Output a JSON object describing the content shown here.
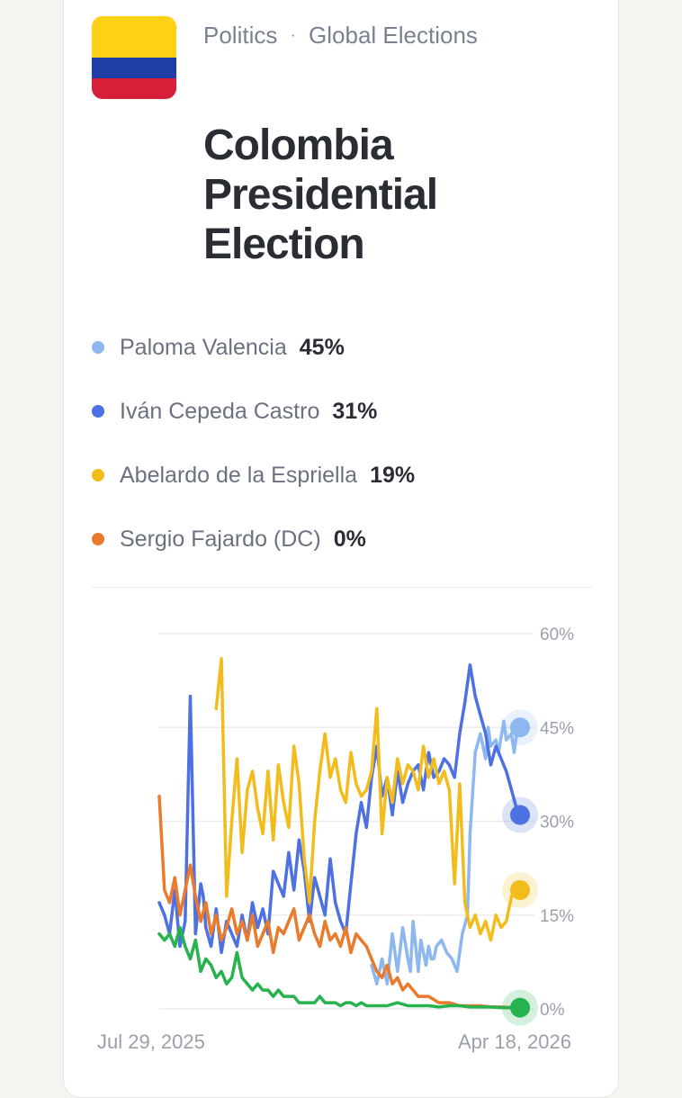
{
  "header": {
    "category": "Politics",
    "separator": "·",
    "subcategory": "Global Elections",
    "flag_icon": "colombia-flag-icon"
  },
  "title": "Colombia Presidential Election",
  "candidates": [
    {
      "name": "Paloma Valencia",
      "pct": "45%",
      "color": "#8db8ef"
    },
    {
      "name": "Iván Cepeda Castro",
      "pct": "31%",
      "color": "#4d71e3"
    },
    {
      "name": "Abelardo de la Espriella",
      "pct": "19%",
      "color": "#f2bd1c"
    },
    {
      "name": "Sergio Fajardo (DC)",
      "pct": "0%",
      "color": "#ea7b2c"
    }
  ],
  "chart_data": {
    "type": "line",
    "x_start": "Jul 29, 2025",
    "x_end": "Apr 18, 2026",
    "y_ticks": [
      "60%",
      "45%",
      "30%",
      "15%",
      "0%"
    ],
    "ylim": [
      0,
      60
    ],
    "series": [
      {
        "name": "Paloma Valencia",
        "color": "#8db8ef",
        "x": [
          0.82,
          0.84,
          0.86,
          0.88,
          0.9,
          0.92,
          0.94,
          0.96,
          0.97,
          0.98,
          0.99,
          1.0,
          1.01,
          1.02,
          1.03,
          1.04,
          1.05,
          1.06,
          1.07,
          1.09,
          1.11,
          1.13,
          1.15,
          1.17,
          1.19,
          1.2,
          1.22,
          1.24,
          1.26,
          1.27,
          1.28,
          1.3,
          1.31,
          1.33,
          1.34,
          1.36,
          1.37,
          1.38,
          1.4
        ],
        "values": [
          7,
          4,
          8,
          4,
          12,
          6,
          13,
          8,
          6,
          14,
          10,
          6,
          11,
          9,
          7,
          10,
          8,
          8,
          10,
          11,
          9,
          8,
          6,
          12,
          15,
          28,
          41,
          44,
          40,
          45,
          42,
          43,
          41,
          46,
          43,
          44,
          41,
          44,
          45
        ]
      },
      {
        "name": "Iván Cepeda Castro",
        "color": "#4d71e3",
        "x": [
          0,
          0.02,
          0.04,
          0.06,
          0.08,
          0.1,
          0.12,
          0.14,
          0.16,
          0.17,
          0.18,
          0.2,
          0.22,
          0.24,
          0.26,
          0.28,
          0.3,
          0.32,
          0.34,
          0.36,
          0.38,
          0.4,
          0.42,
          0.44,
          0.46,
          0.48,
          0.5,
          0.52,
          0.54,
          0.56,
          0.58,
          0.6,
          0.62,
          0.64,
          0.66,
          0.68,
          0.7,
          0.72,
          0.74,
          0.76,
          0.78,
          0.8,
          0.82,
          0.84,
          0.86,
          0.88,
          0.9,
          0.92,
          0.94,
          0.96,
          0.98,
          1.0,
          1.02,
          1.04,
          1.06,
          1.08,
          1.1,
          1.12,
          1.14,
          1.16,
          1.18,
          1.2,
          1.22,
          1.24,
          1.26,
          1.28,
          1.3,
          1.32,
          1.34,
          1.36,
          1.38,
          1.4
        ],
        "values": [
          17,
          15,
          12,
          19,
          10,
          14,
          50,
          12,
          20,
          18,
          13,
          10,
          16,
          9,
          14,
          12,
          10,
          15,
          11,
          17,
          13,
          16,
          12,
          22,
          20,
          18,
          25,
          19,
          27,
          22,
          14,
          21,
          18,
          15,
          24,
          17,
          14,
          12,
          20,
          28,
          33,
          29,
          37,
          42,
          34,
          37,
          31,
          38,
          33,
          36,
          38,
          39,
          35,
          41,
          37,
          38,
          40,
          39,
          37,
          44,
          49,
          55,
          50,
          47,
          44,
          39,
          42,
          40,
          38,
          35,
          32,
          31
        ]
      },
      {
        "name": "Abelardo de la Espriella",
        "color": "#f2bd1c",
        "x": [
          0.22,
          0.24,
          0.26,
          0.28,
          0.3,
          0.32,
          0.34,
          0.36,
          0.38,
          0.4,
          0.42,
          0.44,
          0.46,
          0.48,
          0.5,
          0.52,
          0.54,
          0.56,
          0.58,
          0.6,
          0.62,
          0.64,
          0.66,
          0.68,
          0.7,
          0.72,
          0.74,
          0.76,
          0.78,
          0.8,
          0.82,
          0.84,
          0.86,
          0.88,
          0.9,
          0.92,
          0.94,
          0.96,
          0.98,
          1.0,
          1.02,
          1.04,
          1.06,
          1.08,
          1.1,
          1.12,
          1.14,
          1.16,
          1.18,
          1.2,
          1.22,
          1.24,
          1.26,
          1.28,
          1.3,
          1.32,
          1.34,
          1.36,
          1.38,
          1.4
        ],
        "values": [
          48,
          56,
          18,
          30,
          40,
          25,
          35,
          38,
          32,
          28,
          38,
          27,
          39,
          33,
          29,
          42,
          36,
          24,
          17,
          30,
          38,
          44,
          37,
          40,
          35,
          33,
          41,
          36,
          34,
          35,
          38,
          48,
          28,
          37,
          33,
          40,
          36,
          39,
          38,
          35,
          42,
          37,
          40,
          36,
          38,
          35,
          20,
          36,
          17,
          13,
          15,
          12,
          14,
          11,
          15,
          13,
          14,
          18,
          19,
          19
        ]
      },
      {
        "name": "Sergio Fajardo (DC)",
        "color": "#ea7b2c",
        "x": [
          0,
          0.02,
          0.04,
          0.06,
          0.08,
          0.1,
          0.12,
          0.14,
          0.16,
          0.18,
          0.2,
          0.22,
          0.24,
          0.26,
          0.28,
          0.3,
          0.32,
          0.34,
          0.36,
          0.38,
          0.4,
          0.42,
          0.44,
          0.46,
          0.48,
          0.5,
          0.52,
          0.54,
          0.56,
          0.58,
          0.6,
          0.62,
          0.64,
          0.66,
          0.68,
          0.7,
          0.72,
          0.74,
          0.76,
          0.78,
          0.8,
          0.82,
          0.84,
          0.86,
          0.88,
          0.9,
          0.92,
          0.94,
          0.96,
          0.98,
          1.0,
          1.04,
          1.08,
          1.12,
          1.16,
          1.2,
          1.24,
          1.28,
          1.32,
          1.36,
          1.4
        ],
        "values": [
          34,
          19,
          17,
          21,
          15,
          19,
          23,
          18,
          14,
          17,
          12,
          15,
          11,
          13,
          16,
          12,
          14,
          11,
          15,
          10,
          12,
          14,
          9,
          13,
          12,
          14,
          16,
          11,
          13,
          15,
          12,
          10,
          14,
          11,
          12,
          10,
          13,
          9,
          12,
          11,
          10,
          8,
          6,
          5,
          7,
          4,
          5,
          3,
          4,
          3,
          2,
          2,
          1,
          1,
          0.5,
          0.5,
          0.5,
          0.3,
          0.3,
          0.2,
          0.2
        ]
      },
      {
        "name": "",
        "color": "#26b34e",
        "x": [
          0,
          0.02,
          0.04,
          0.06,
          0.08,
          0.1,
          0.12,
          0.14,
          0.16,
          0.18,
          0.2,
          0.22,
          0.24,
          0.26,
          0.28,
          0.3,
          0.32,
          0.34,
          0.36,
          0.38,
          0.4,
          0.42,
          0.44,
          0.46,
          0.48,
          0.5,
          0.52,
          0.54,
          0.56,
          0.58,
          0.6,
          0.62,
          0.64,
          0.66,
          0.68,
          0.7,
          0.72,
          0.74,
          0.76,
          0.78,
          0.8,
          0.84,
          0.88,
          0.92,
          0.96,
          1.0,
          1.04,
          1.08,
          1.12,
          1.16,
          1.2,
          1.24,
          1.28,
          1.32,
          1.36,
          1.4
        ],
        "values": [
          12,
          11,
          12,
          10,
          13,
          10,
          8,
          11,
          6,
          8,
          7,
          5,
          6,
          4,
          5,
          9,
          5,
          4,
          3,
          4,
          3,
          3,
          2,
          3,
          2,
          2,
          2,
          1,
          1,
          1,
          1,
          2,
          1,
          1,
          1,
          0.5,
          1,
          1,
          0.5,
          1,
          0.5,
          0.5,
          0.5,
          1,
          0.5,
          0.5,
          0.5,
          0.3,
          0.5,
          0.5,
          0.3,
          0.3,
          0.3,
          0.2,
          0.2,
          0.2
        ]
      }
    ]
  }
}
